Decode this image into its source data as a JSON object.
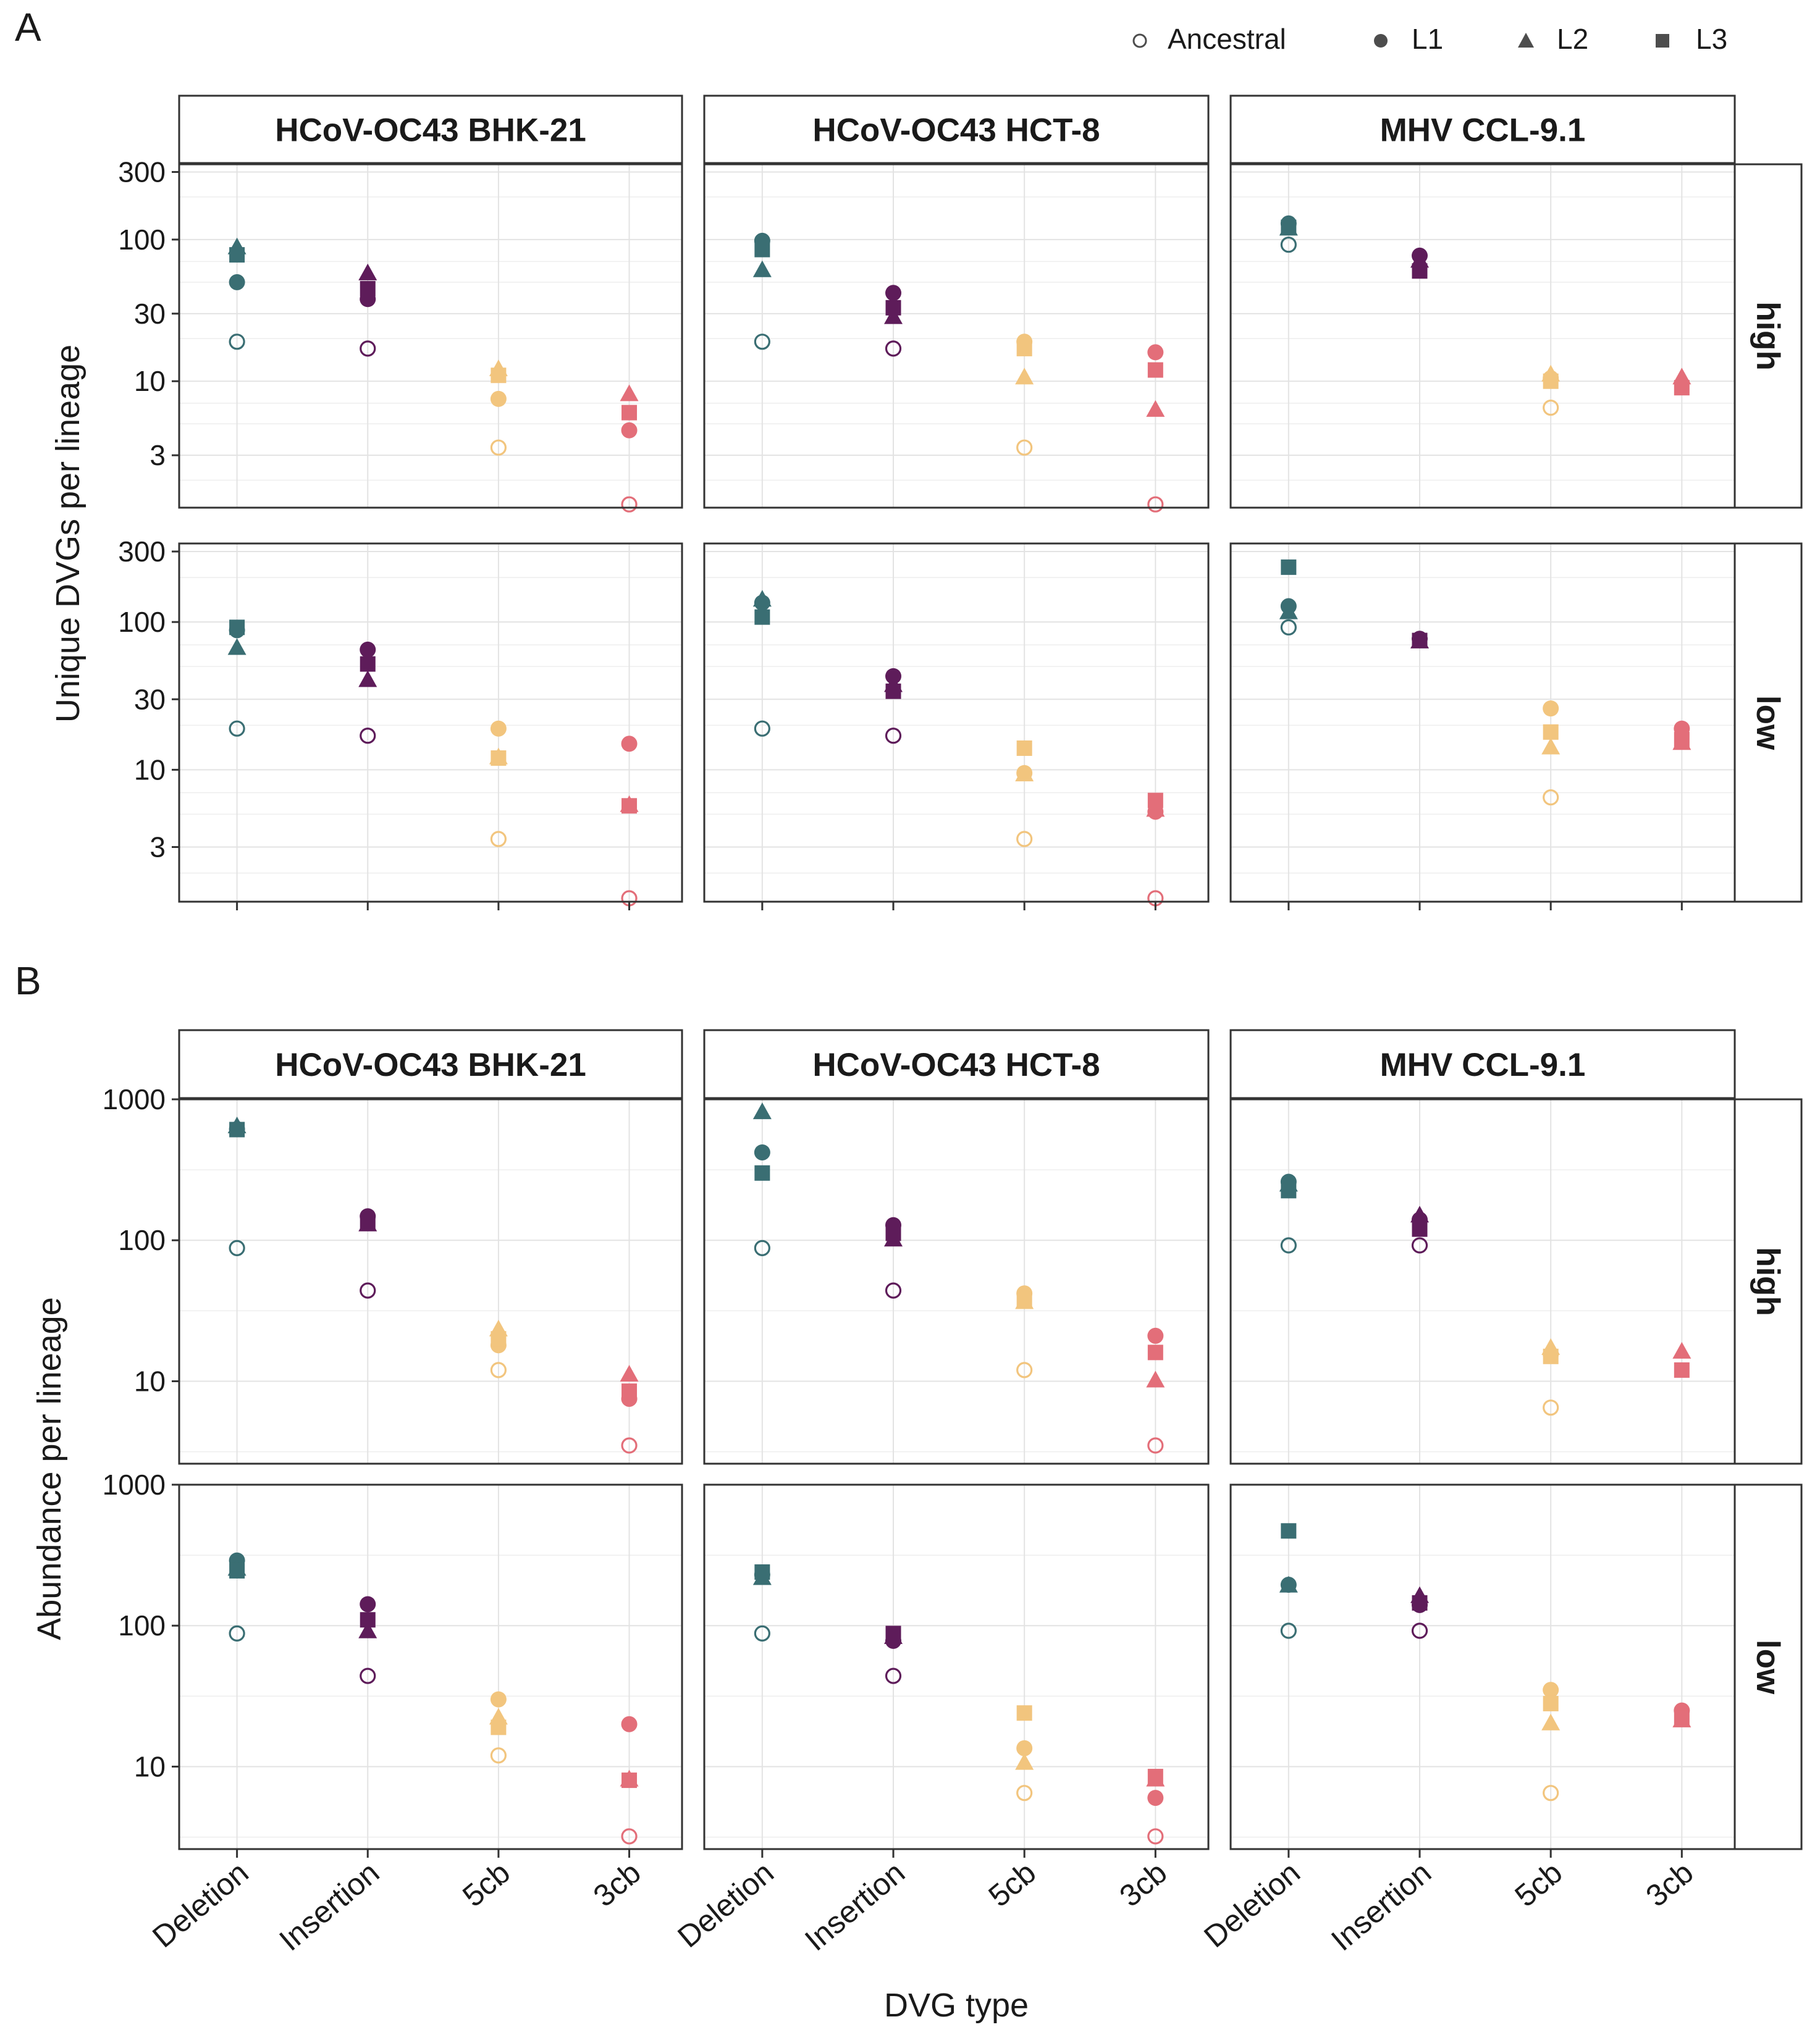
{
  "legend": {
    "items": [
      {
        "label": "Ancestral",
        "shape": "circle",
        "filled": false
      },
      {
        "label": "L1",
        "shape": "circle",
        "filled": true
      },
      {
        "label": "L2",
        "shape": "triangle",
        "filled": true
      },
      {
        "label": "L3",
        "shape": "square",
        "filled": true
      }
    ],
    "placement": "top-right"
  },
  "colors": {
    "Deletion": "#3a6e73",
    "Insertion": "#5e1c5a",
    "5cb": "#f2c57e",
    "3cb": "#e36e79",
    "legend_marker": "#4d4d4d",
    "strip_fill": "#ffffff",
    "grid": "#e3e3e3",
    "panel_border": "#333333"
  },
  "chart_data": [
    {
      "type": "scatter",
      "panel_label": "A",
      "title": "",
      "xlabel": "",
      "ylabel": "Unique DVGs per lineage",
      "y_scale": "log10",
      "ylim": [
        1.3,
        300
      ],
      "y_ticks": [
        3,
        10,
        30,
        100,
        300
      ],
      "y_tick_labels": [
        "3",
        "10",
        "30",
        "100",
        "300"
      ],
      "categories": [
        "Deletion",
        "Insertion",
        "5cb",
        "3cb"
      ],
      "facet_columns": [
        "HCoV-OC43 BHK-21",
        "HCoV-OC43 HCT-8",
        "MHV CCL-9.1"
      ],
      "facet_rows": [
        "high",
        "low"
      ],
      "series_names": [
        "Ancestral",
        "L1",
        "L2",
        "L3"
      ],
      "values": {
        "high": {
          "HCoV-OC43 BHK-21": {
            "Ancestral": [
              19,
              17,
              3.4,
              1.35
            ],
            "L1": [
              50,
              38,
              7.5,
              4.5
            ],
            "L2": [
              87,
              57,
              12,
              8
            ],
            "L3": [
              78,
              45,
              11,
              6
            ]
          },
          "HCoV-OC43 HCT-8": {
            "Ancestral": [
              19,
              17,
              3.4,
              1.35
            ],
            "L1": [
              98,
              42,
              19,
              16
            ],
            "L2": [
              60,
              28,
              10.5,
              6.2
            ],
            "L3": [
              85,
              33,
              17,
              12
            ]
          },
          "MHV CCL-9.1": {
            "Ancestral": [
              92,
              0,
              6.5,
              0
            ],
            "L1": [
              130,
              77,
              10.5,
              0
            ],
            "L2": [
              118,
              70,
              11,
              10.5
            ],
            "L3": [
              122,
              60,
              10,
              9
            ]
          }
        },
        "low": {
          "HCoV-OC43 BHK-21": {
            "Ancestral": [
              19,
              17,
              3.4,
              1.35
            ],
            "L1": [
              88,
              65,
              19,
              15
            ],
            "L2": [
              66,
              40,
              12,
              5.7
            ],
            "L3": [
              92,
              52,
              12,
              5.7
            ]
          },
          "HCoV-OC43 HCT-8": {
            "Ancestral": [
              19,
              17,
              3.4,
              1.35
            ],
            "L1": [
              135,
              43,
              9.5,
              5.2
            ],
            "L2": [
              140,
              37,
              9.2,
              5.3
            ],
            "L3": [
              108,
              34,
              14,
              6.2
            ]
          },
          "MHV CCL-9.1": {
            "Ancestral": [
              92,
              0,
              6.5,
              0
            ],
            "L1": [
              128,
              77,
              26,
              19
            ],
            "L2": [
              115,
              73,
              14,
              15
            ],
            "L3": [
              235,
              75,
              18,
              16
            ]
          }
        }
      }
    },
    {
      "type": "scatter",
      "panel_label": "B",
      "title": "",
      "xlabel": "DVG type",
      "ylabel": "Abundance per lineage",
      "y_scale": "log10",
      "ylim": [
        3,
        1000
      ],
      "y_ticks": [
        10,
        100,
        1000
      ],
      "y_tick_labels": [
        "10",
        "100",
        "1000"
      ],
      "categories": [
        "Deletion",
        "Insertion",
        "5cb",
        "3cb"
      ],
      "facet_columns": [
        "HCoV-OC43 BHK-21",
        "HCoV-OC43 HCT-8",
        "MHV CCL-9.1"
      ],
      "facet_rows": [
        "high",
        "low"
      ],
      "series_names": [
        "Ancestral",
        "L1",
        "L2",
        "L3"
      ],
      "values": {
        "high": {
          "HCoV-OC43 BHK-21": {
            "Ancestral": [
              88,
              44,
              12,
              3.5
            ],
            "L1": [
              615,
              148,
              18,
              7.5
            ],
            "L2": [
              635,
              128,
              23,
              11
            ],
            "L3": [
              610,
              132,
              20,
              8.5
            ]
          },
          "HCoV-OC43 HCT-8": {
            "Ancestral": [
              88,
              44,
              12,
              3.5
            ],
            "L1": [
              420,
              128,
              42,
              21
            ],
            "L2": [
              800,
              100,
              36,
              10
            ],
            "L3": [
              300,
              112,
              38,
              16
            ]
          },
          "MHV CCL-9.1": {
            "Ancestral": [
              92,
              92,
              6.5,
              0
            ],
            "L1": [
              260,
              140,
              15.5,
              0
            ],
            "L2": [
              245,
              148,
              17,
              16
            ],
            "L3": [
              225,
              120,
              15,
              12
            ]
          }
        },
        "low": {
          "HCoV-OC43 BHK-21": {
            "Ancestral": [
              88,
              44,
              12,
              3.2
            ],
            "L1": [
              290,
              142,
              30,
              20
            ],
            "L2": [
              250,
              90,
              22,
              8
            ],
            "L3": [
              245,
              110,
              19,
              8
            ]
          },
          "HCoV-OC43 HCT-8": {
            "Ancestral": [
              88,
              44,
              6.5,
              3.2
            ],
            "L1": [
              230,
              78,
              13.5,
              6
            ],
            "L2": [
              215,
              82,
              10.5,
              8
            ],
            "L3": [
              240,
              88,
              24,
              8.5
            ]
          },
          "MHV CCL-9.1": {
            "Ancestral": [
              92,
              92,
              6.5,
              0
            ],
            "L1": [
              195,
              140,
              35,
              25
            ],
            "L2": [
              190,
              160,
              20,
              21
            ],
            "L3": [
              470,
              145,
              28,
              22
            ]
          }
        }
      }
    }
  ]
}
